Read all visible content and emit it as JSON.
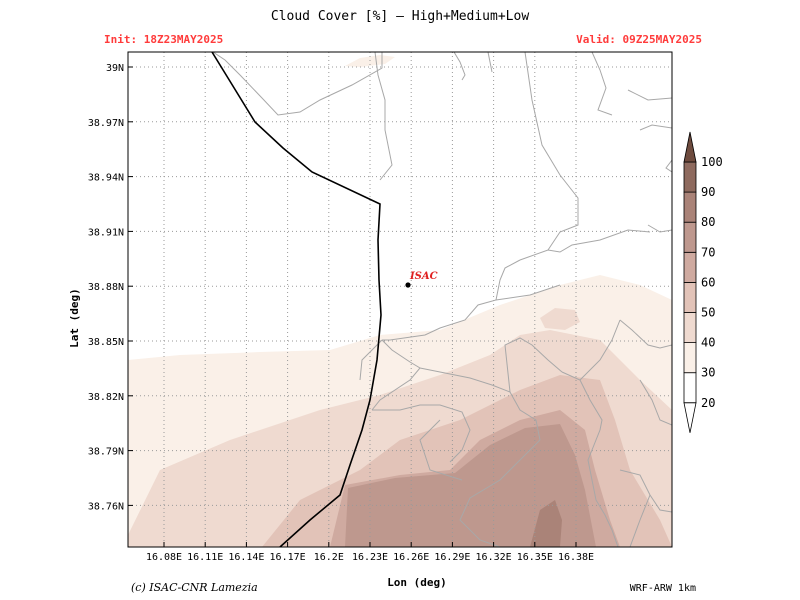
{
  "title": "Cloud Cover [%] — High+Medium+Low",
  "init_label": "Init: 18Z23MAY2025",
  "valid_label": "Valid: 09Z25MAY2025",
  "x_axis_label": "Lon (deg)",
  "y_axis_label": "Lat (deg)",
  "lon_ticks": [
    "16.08E",
    "16.11E",
    "16.14E",
    "16.17E",
    "16.2E",
    "16.23E",
    "16.26E",
    "16.29E",
    "16.32E",
    "16.35E",
    "16.38E"
  ],
  "lat_ticks": [
    "39N",
    "38.97N",
    "38.94N",
    "38.91N",
    "38.88N",
    "38.85N",
    "38.82N",
    "38.79N",
    "38.76N"
  ],
  "colorbar_levels": [
    "20",
    "30",
    "40",
    "50",
    "60",
    "70",
    "80",
    "90",
    "100"
  ],
  "marker_label": "ISAC",
  "credit": "(c) ISAC-CNR Lamezia",
  "model": "WRF-ARW 1km",
  "colors": {
    "init_valid": "#ff3b3b",
    "marker_label": "#e02020",
    "shade_30": "#faf0e8",
    "shade_40": "#efdad0",
    "shade_50": "#e2c3b8",
    "shade_60": "#cfaaa0",
    "shade_70": "#be988e",
    "shade_80": "#aa8378",
    "shade_90": "#8e6a5e",
    "shade_100": "#6e4b3e"
  }
}
